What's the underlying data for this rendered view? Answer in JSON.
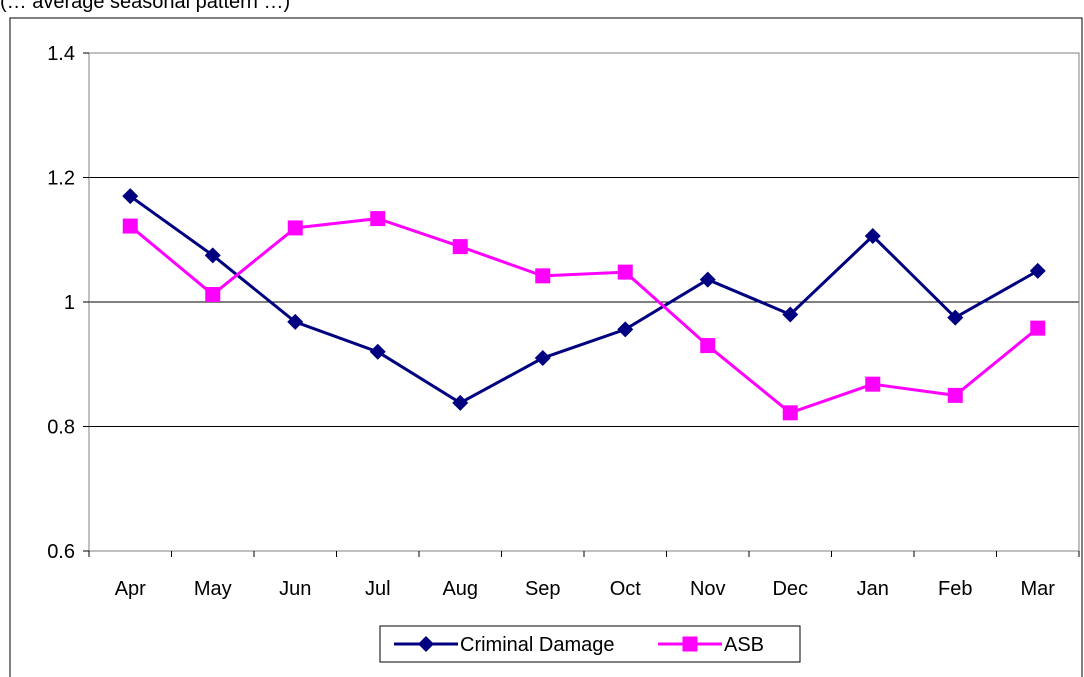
{
  "note": "(… average seasonal pattern …)",
  "chart_data": {
    "type": "line",
    "categories": [
      "Apr",
      "May",
      "Jun",
      "Jul",
      "Aug",
      "Sep",
      "Oct",
      "Nov",
      "Dec",
      "Jan",
      "Feb",
      "Mar"
    ],
    "y_ticks": [
      "0.6",
      "0.8",
      "1",
      "1.2",
      "1.4"
    ],
    "ylim": [
      0.6,
      1.4
    ],
    "grid": true,
    "legend": "bottom",
    "series": [
      {
        "name": "Criminal Damage",
        "marker": "diamond",
        "color": "#000080",
        "values": [
          1.17,
          1.075,
          0.968,
          0.92,
          0.838,
          0.91,
          0.956,
          1.036,
          0.98,
          1.106,
          0.975,
          1.05
        ]
      },
      {
        "name": "ASB",
        "marker": "square",
        "color": "#ff00ff",
        "values": [
          1.122,
          1.012,
          1.119,
          1.134,
          1.089,
          1.042,
          1.048,
          0.93,
          0.822,
          0.868,
          0.85,
          0.958
        ]
      }
    ]
  }
}
